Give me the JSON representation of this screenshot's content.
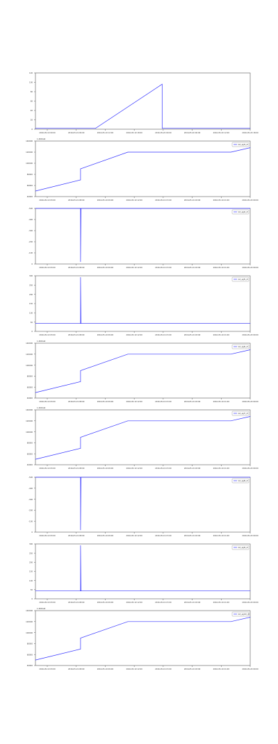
{
  "chart_data": [
    {
      "type": "line",
      "title": "",
      "xlabel": "",
      "ylabel": "",
      "offset_text": "",
      "legend": null,
      "color": "#3333ff",
      "yticks": [
        "0",
        "20",
        "40",
        "60",
        "80",
        "100",
        "120"
      ],
      "xticks": [
        "2016-05-19 00:00",
        "2016-05-19 06:00",
        "2016-05-19 12:00",
        "2016-05-19 18:00",
        "2016-05-20 00:00",
        "2016-05-20 06:00",
        "2016-05-20 12:00",
        "2016-05-20 18:00"
      ],
      "ylim": [
        0,
        125
      ],
      "xlim": [
        0,
        1
      ],
      "x": [
        0.0,
        0.28,
        0.59,
        0.59,
        1.0
      ],
      "y": [
        2,
        2,
        100,
        2,
        2
      ]
    },
    {
      "type": "line",
      "title": "",
      "xlabel": "",
      "ylabel": "",
      "offset_text": "1.4601e9",
      "legend": "GX_ag3l_dl",
      "color": "#3333ff",
      "yticks": [
        "40000",
        "60000",
        "80000",
        "100000",
        "120000",
        "140000"
      ],
      "xticks": [
        "2016-05-19 03:00",
        "2016-05-19 08:00",
        "2016-05-19 09:00",
        "2016-05-19 12:00",
        "2016-05-19 15:00",
        "2016-05-19 18:00",
        "2016-05-19 21:00",
        "2016-05-20 00:00"
      ],
      "ylim": [
        40000,
        140000
      ],
      "xlim": [
        0,
        1
      ],
      "x": [
        0.0,
        0.21,
        0.21,
        0.43,
        0.91,
        1.0
      ],
      "y": [
        50000,
        70000,
        90000,
        120000,
        120000,
        128000
      ]
    },
    {
      "type": "line",
      "title": "",
      "xlabel": "",
      "ylabel": "",
      "offset_text": "",
      "legend": "GX_ag4l_dl",
      "color": "#3333ff",
      "yticks": [
        "0",
        "-100",
        "-200",
        "-300",
        "-400",
        "-500"
      ],
      "xticks": [
        "2016-05-19 03:00",
        "2016-05-19 08:00",
        "2016-05-19 09:00",
        "2016-05-19 12:00",
        "2016-05-19 15:00",
        "2016-05-19 18:00",
        "2016-05-19 21:00",
        "2016-05-20 00:00"
      ],
      "ylim": [
        -500,
        0
      ],
      "xlim": [
        0,
        1
      ],
      "x": [
        0.0,
        0.21,
        0.21,
        0.212,
        1.0
      ],
      "y": [
        0,
        0,
        -480,
        0,
        0
      ]
    },
    {
      "type": "line",
      "title": "",
      "xlabel": "",
      "ylabel": "",
      "offset_text": "",
      "legend": "GX_ag5l_dl",
      "color": "#3333ff",
      "yticks": [
        "0",
        "50",
        "100",
        "150",
        "200",
        "250",
        "300"
      ],
      "xticks": [
        "2016-05-19 03:00",
        "2016-05-19 08:00",
        "2016-05-19 09:00",
        "2016-05-19 12:00",
        "2016-05-19 15:00",
        "2016-05-19 18:00",
        "2016-05-19 21:00",
        "2016-05-20 00:00"
      ],
      "ylim": [
        -50,
        300
      ],
      "xlim": [
        0,
        1
      ],
      "x": [
        0.0,
        0.21,
        0.21,
        0.212,
        1.0
      ],
      "y": [
        0,
        0,
        290,
        0,
        0
      ]
    },
    {
      "type": "line",
      "title": "",
      "xlabel": "",
      "ylabel": "",
      "offset_text": "1.4601e9",
      "legend": "GX_ag6l_dl",
      "color": "#3333ff",
      "yticks": [
        "40000",
        "60000",
        "80000",
        "100000",
        "120000",
        "140000"
      ],
      "xticks": [
        "2016-05-19 03:00",
        "2016-05-19 08:00",
        "2016-05-19 09:00",
        "2016-05-19 12:00",
        "2016-05-19 15:00",
        "2016-05-19 18:00",
        "2016-05-19 21:00",
        "2016-05-20 00:00"
      ],
      "ylim": [
        40000,
        140000
      ],
      "xlim": [
        0,
        1
      ],
      "x": [
        0.0,
        0.21,
        0.21,
        0.43,
        0.91,
        1.0
      ],
      "y": [
        50000,
        70000,
        90000,
        120000,
        120000,
        128000
      ]
    },
    {
      "type": "line",
      "title": "",
      "xlabel": "",
      "ylabel": "",
      "offset_text": "1.4601e9",
      "legend": "GX_ag7l_dl",
      "color": "#3333ff",
      "yticks": [
        "40000",
        "60000",
        "80000",
        "100000",
        "120000",
        "140000"
      ],
      "xticks": [
        "2016-05-19 03:00",
        "2016-05-19 08:00",
        "2016-05-19 09:00",
        "2016-05-19 12:00",
        "2016-05-19 15:00",
        "2016-05-19 18:00",
        "2016-05-19 21:00",
        "2016-05-20 00:00"
      ],
      "ylim": [
        40000,
        140000
      ],
      "xlim": [
        0,
        1
      ],
      "x": [
        0.0,
        0.21,
        0.21,
        0.43,
        0.91,
        1.0
      ],
      "y": [
        50000,
        70000,
        90000,
        120000,
        120000,
        128000
      ]
    },
    {
      "type": "line",
      "title": "",
      "xlabel": "",
      "ylabel": "",
      "offset_text": "",
      "legend": "GX_ag8l_dl",
      "color": "#3333ff",
      "yticks": [
        "0",
        "-100",
        "-200",
        "-300",
        "-400",
        "-500"
      ],
      "xticks": [
        "2016-05-19 03:00",
        "2016-05-19 08:00",
        "2016-05-19 09:00",
        "2016-05-19 12:00",
        "2016-05-19 15:00",
        "2016-05-19 18:00",
        "2016-05-19 21:00",
        "2016-05-20 00:00"
      ],
      "ylim": [
        -500,
        0
      ],
      "xlim": [
        0,
        1
      ],
      "x": [
        0.0,
        0.21,
        0.21,
        0.212,
        1.0
      ],
      "y": [
        0,
        0,
        -480,
        0,
        0
      ]
    },
    {
      "type": "line",
      "title": "",
      "xlabel": "",
      "ylabel": "",
      "offset_text": "",
      "legend": "GX_ag9l_dl",
      "color": "#3333ff",
      "yticks": [
        "0",
        "50",
        "100",
        "150",
        "200",
        "250",
        "300"
      ],
      "xticks": [
        "2016-05-19 03:00",
        "2016-05-19 08:00",
        "2016-05-19 09:00",
        "2016-05-19 12:00",
        "2016-05-19 15:00",
        "2016-05-19 18:00",
        "2016-05-19 21:00",
        "2016-05-20 00:00"
      ],
      "ylim": [
        -50,
        300
      ],
      "xlim": [
        0,
        1
      ],
      "x": [
        0.0,
        0.21,
        0.21,
        0.212,
        1.0
      ],
      "y": [
        0,
        0,
        290,
        0,
        0
      ]
    },
    {
      "type": "line",
      "title": "",
      "xlabel": "",
      "ylabel": "",
      "offset_text": "1.4601e9",
      "legend": "GX_ag10l_dl",
      "color": "#3333ff",
      "yticks": [
        "40000",
        "60000",
        "80000",
        "100000",
        "120000",
        "140000"
      ],
      "xticks": [
        "2016-05-19 03:00",
        "2016-05-19 08:00",
        "2016-05-19 09:00",
        "2016-05-19 12:00",
        "2016-05-19 15:00",
        "2016-05-19 18:00",
        "2016-05-19 21:00",
        "2016-05-20 00:00"
      ],
      "ylim": [
        40000,
        140000
      ],
      "xlim": [
        0,
        1
      ],
      "x": [
        0.0,
        0.21,
        0.21,
        0.43,
        0.91,
        1.0
      ],
      "y": [
        50000,
        70000,
        90000,
        120000,
        120000,
        128000
      ]
    }
  ]
}
